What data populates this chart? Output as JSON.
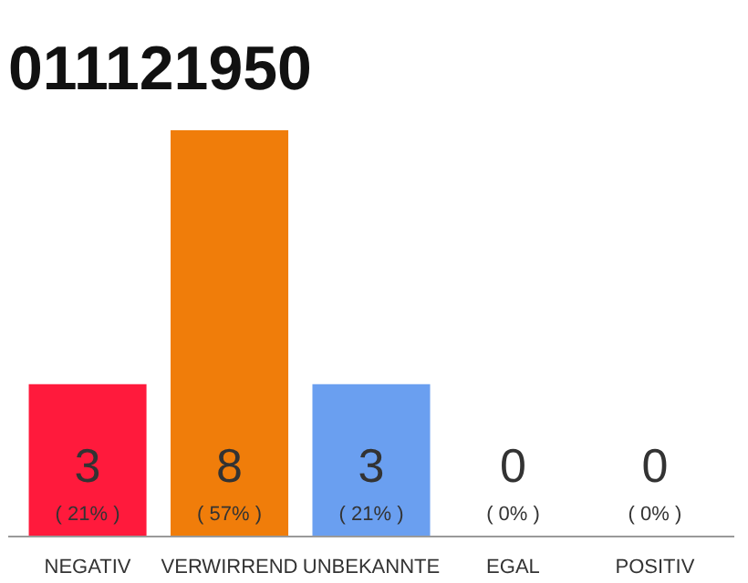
{
  "chart_data": {
    "type": "bar",
    "title": "011121950",
    "categories": [
      "NEGATIV",
      "VERWIRREND",
      "UNBEKANNTE",
      "EGAL",
      "POSITIV"
    ],
    "values": [
      3,
      8,
      3,
      0,
      0
    ],
    "colors": [
      "#ff1a3c",
      "#f07d0a",
      "#6a9ff0",
      "#dddddd",
      "#dddddd"
    ],
    "ylim": [
      0,
      8
    ],
    "tick_labels": "x",
    "data_labels": true,
    "annotations": [
      "( 21% )",
      "( 57% )",
      "( 21% )",
      "( 0% )",
      "( 0% )"
    ],
    "grid": false
  }
}
